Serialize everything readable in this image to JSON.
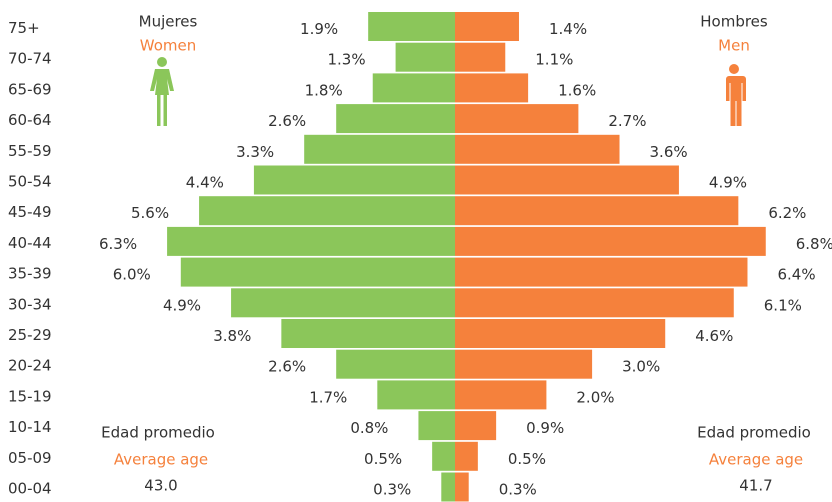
{
  "chart_data": {
    "type": "pyramid",
    "categories": [
      "75+",
      "70-74",
      "65-69",
      "60-64",
      "55-59",
      "50-54",
      "45-49",
      "40-44",
      "35-39",
      "30-34",
      "25-29",
      "20-24",
      "15-19",
      "10-14",
      "05-09",
      "00-04"
    ],
    "series": [
      {
        "name": "Mujeres",
        "name_en": "Women",
        "color": "#8bc65a",
        "values": [
          1.9,
          1.3,
          1.8,
          2.6,
          3.3,
          4.4,
          5.6,
          6.3,
          6.0,
          4.9,
          3.8,
          2.6,
          1.7,
          0.8,
          0.5,
          0.3
        ],
        "value_labels": [
          "1.9%",
          "1.3%",
          "1.8%",
          "2.6%",
          "3.3%",
          "4.4%",
          "5.6%",
          "6.3%",
          "6.0%",
          "4.9%",
          "3.8%",
          "2.6%",
          "1.7%",
          "0.8%",
          "0.5%",
          "0.3%"
        ],
        "average_label": "Edad promedio",
        "average_label_en": "Average age",
        "average": "43.0"
      },
      {
        "name": "Hombres",
        "name_en": "Men",
        "color": "#f5813c",
        "values": [
          1.4,
          1.1,
          1.6,
          2.7,
          3.6,
          4.9,
          6.2,
          6.8,
          6.4,
          6.1,
          4.6,
          3.0,
          2.0,
          0.9,
          0.5,
          0.3
        ],
        "value_labels": [
          "1.4%",
          "1.1%",
          "1.6%",
          "2.7%",
          "3.6%",
          "4.9%",
          "6.2%",
          "6.8%",
          "6.4%",
          "6.1%",
          "4.6%",
          "3.0%",
          "2.0%",
          "0.9%",
          "0.5%",
          "0.3%"
        ],
        "average_label": "Edad promedio",
        "average_label_en": "Average age",
        "average": "41.7"
      }
    ]
  }
}
